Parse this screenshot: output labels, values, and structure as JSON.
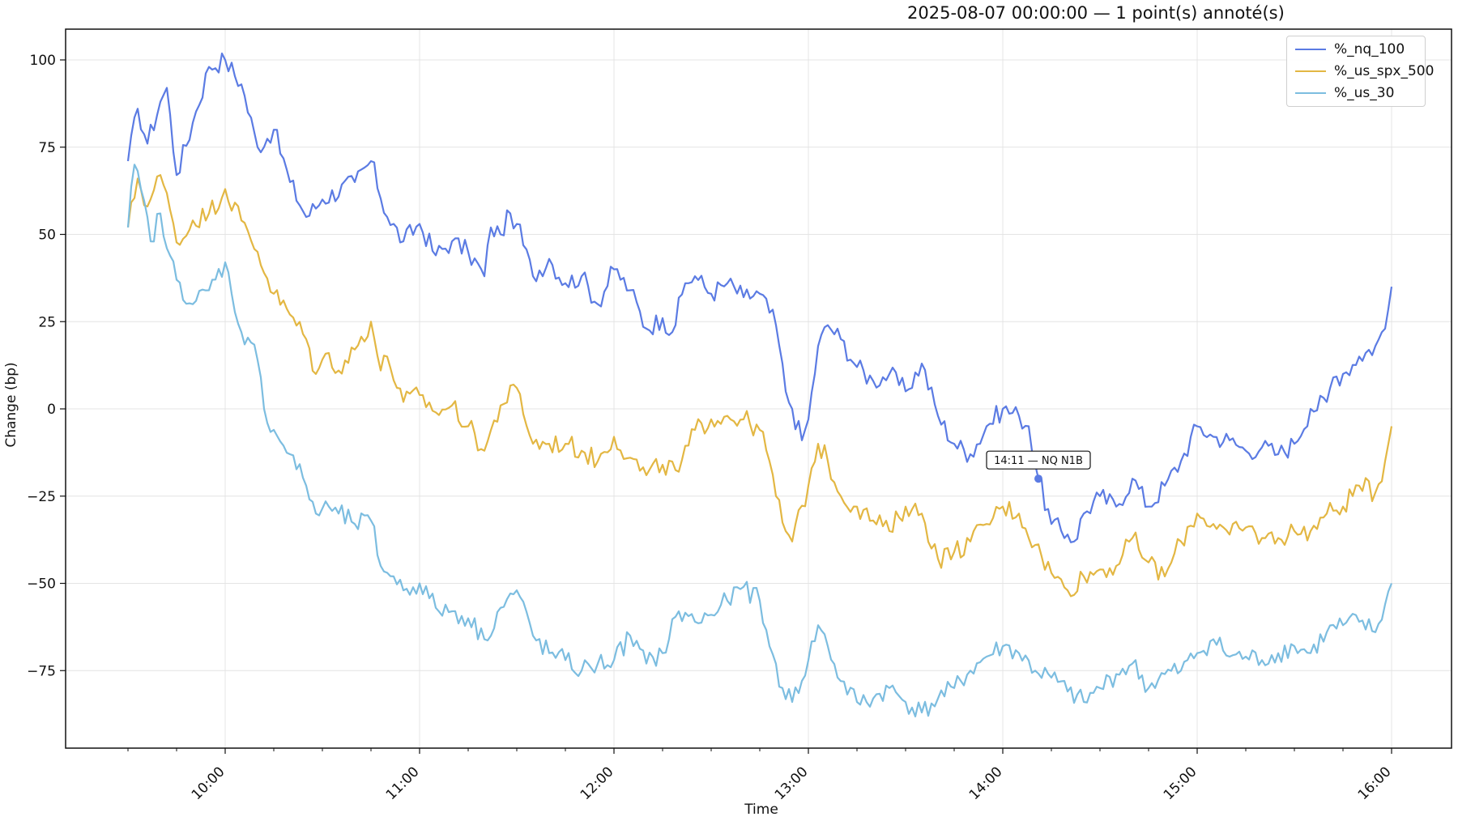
{
  "chart_data": {
    "type": "line",
    "title": "2025-08-07 00:00:00 — 1 point(s) annoté(s)",
    "xlabel": "Time",
    "ylabel": "Change (bp)",
    "x_range": [
      "09:30",
      "16:00"
    ],
    "ylim": [
      -97,
      109
    ],
    "y_ticks": [
      100,
      75,
      50,
      25,
      0,
      -25,
      -50,
      -75
    ],
    "y_tick_labels": [
      "100",
      "75",
      "50",
      "25",
      "0",
      "−25",
      "−50",
      "−75"
    ],
    "x_ticks": [
      "10:00",
      "11:00",
      "12:00",
      "13:00",
      "14:00",
      "15:00",
      "16:00"
    ],
    "grid": true,
    "legend_position": "top-right",
    "series": [
      {
        "name": "%_nq_100",
        "color": "#5b7be3",
        "points": [
          [
            "09:30",
            71
          ],
          [
            "09:33",
            86
          ],
          [
            "09:36",
            76
          ],
          [
            "09:40",
            88
          ],
          [
            "09:42",
            92
          ],
          [
            "09:45",
            67
          ],
          [
            "09:50",
            82
          ],
          [
            "09:55",
            98
          ],
          [
            "10:00",
            100
          ],
          [
            "10:05",
            93
          ],
          [
            "10:10",
            75
          ],
          [
            "10:15",
            80
          ],
          [
            "10:20",
            65
          ],
          [
            "10:25",
            55
          ],
          [
            "10:30",
            60
          ],
          [
            "10:40",
            65
          ],
          [
            "10:45",
            71
          ],
          [
            "10:50",
            55
          ],
          [
            "10:55",
            48
          ],
          [
            "11:00",
            53
          ],
          [
            "11:05",
            44
          ],
          [
            "11:10",
            48
          ],
          [
            "11:15",
            45
          ],
          [
            "11:20",
            38
          ],
          [
            "11:22",
            52
          ],
          [
            "11:25",
            50
          ],
          [
            "11:28",
            56
          ],
          [
            "11:30",
            53
          ],
          [
            "11:35",
            38
          ],
          [
            "11:40",
            43
          ],
          [
            "11:45",
            36
          ],
          [
            "11:50",
            38
          ],
          [
            "11:55",
            30
          ],
          [
            "12:00",
            40
          ],
          [
            "12:05",
            34
          ],
          [
            "12:10",
            23
          ],
          [
            "12:15",
            26
          ],
          [
            "12:18",
            22
          ],
          [
            "12:22",
            36
          ],
          [
            "12:25",
            38
          ],
          [
            "12:30",
            33
          ],
          [
            "12:35",
            36
          ],
          [
            "12:40",
            32
          ],
          [
            "12:45",
            33
          ],
          [
            "12:50",
            24
          ],
          [
            "12:53",
            5
          ],
          [
            "12:55",
            0
          ],
          [
            "12:58",
            -9
          ],
          [
            "13:00",
            -3
          ],
          [
            "13:03",
            18
          ],
          [
            "13:06",
            24
          ],
          [
            "13:10",
            20
          ],
          [
            "13:15",
            12
          ],
          [
            "13:20",
            8
          ],
          [
            "13:25",
            10
          ],
          [
            "13:30",
            5
          ],
          [
            "13:35",
            13
          ],
          [
            "13:40",
            -2
          ],
          [
            "13:45",
            -10
          ],
          [
            "13:50",
            -13
          ],
          [
            "13:55",
            -5
          ],
          [
            "14:00",
            0
          ],
          [
            "14:05",
            -2
          ],
          [
            "14:08",
            -5
          ],
          [
            "14:11",
            -20
          ],
          [
            "14:15",
            -33
          ],
          [
            "14:20",
            -36
          ],
          [
            "14:22",
            -38
          ],
          [
            "14:25",
            -30
          ],
          [
            "14:30",
            -25
          ],
          [
            "14:35",
            -28
          ],
          [
            "14:40",
            -20
          ],
          [
            "14:45",
            -28
          ],
          [
            "14:50",
            -22
          ],
          [
            "14:55",
            -15
          ],
          [
            "15:00",
            -5
          ],
          [
            "15:05",
            -8
          ],
          [
            "15:10",
            -9
          ],
          [
            "15:15",
            -12
          ],
          [
            "15:20",
            -11
          ],
          [
            "15:25",
            -13
          ],
          [
            "15:30",
            -10
          ],
          [
            "15:35",
            0
          ],
          [
            "15:40",
            2
          ],
          [
            "15:42",
            9
          ],
          [
            "15:45",
            10
          ],
          [
            "15:50",
            15
          ],
          [
            "15:55",
            18
          ],
          [
            "15:58",
            23
          ],
          [
            "16:00",
            35
          ]
        ]
      },
      {
        "name": "%_us_spx_500",
        "color": "#e3b743",
        "points": [
          [
            "09:30",
            52
          ],
          [
            "09:33",
            66
          ],
          [
            "09:36",
            58
          ],
          [
            "09:40",
            67
          ],
          [
            "09:43",
            57
          ],
          [
            "09:46",
            47
          ],
          [
            "09:50",
            54
          ],
          [
            "09:55",
            56
          ],
          [
            "10:00",
            63
          ],
          [
            "10:05",
            54
          ],
          [
            "10:10",
            45
          ],
          [
            "10:15",
            33
          ],
          [
            "10:20",
            27
          ],
          [
            "10:25",
            20
          ],
          [
            "10:28",
            10
          ],
          [
            "10:32",
            16
          ],
          [
            "10:35",
            11
          ],
          [
            "10:40",
            17
          ],
          [
            "10:45",
            25
          ],
          [
            "10:48",
            11
          ],
          [
            "10:50",
            15
          ],
          [
            "10:55",
            2
          ],
          [
            "11:00",
            4
          ],
          [
            "11:05",
            -1
          ],
          [
            "11:10",
            1
          ],
          [
            "11:15",
            -5
          ],
          [
            "11:20",
            -12
          ],
          [
            "11:25",
            1
          ],
          [
            "11:30",
            6
          ],
          [
            "11:35",
            -10
          ],
          [
            "11:40",
            -10
          ],
          [
            "11:45",
            -10
          ],
          [
            "11:50",
            -12
          ],
          [
            "11:55",
            -15
          ],
          [
            "12:00",
            -8
          ],
          [
            "12:05",
            -14
          ],
          [
            "12:10",
            -19
          ],
          [
            "12:15",
            -16
          ],
          [
            "12:20",
            -18
          ],
          [
            "12:25",
            -6
          ],
          [
            "12:30",
            -3
          ],
          [
            "12:35",
            -2
          ],
          [
            "12:40",
            -3
          ],
          [
            "12:45",
            -6
          ],
          [
            "12:48",
            -15
          ],
          [
            "12:50",
            -25
          ],
          [
            "12:53",
            -35
          ],
          [
            "12:55",
            -38
          ],
          [
            "13:00",
            -22
          ],
          [
            "13:03",
            -10
          ],
          [
            "13:06",
            -15
          ],
          [
            "13:10",
            -25
          ],
          [
            "13:15",
            -28
          ],
          [
            "13:20",
            -32
          ],
          [
            "13:25",
            -35
          ],
          [
            "13:30",
            -28
          ],
          [
            "13:35",
            -30
          ],
          [
            "13:40",
            -43
          ],
          [
            "13:45",
            -41
          ],
          [
            "13:50",
            -38
          ],
          [
            "13:55",
            -33
          ],
          [
            "14:00",
            -28
          ],
          [
            "14:05",
            -30
          ],
          [
            "14:10",
            -39
          ],
          [
            "14:15",
            -47
          ],
          [
            "14:20",
            -52
          ],
          [
            "14:25",
            -48
          ],
          [
            "14:30",
            -46
          ],
          [
            "14:35",
            -45
          ],
          [
            "14:40",
            -37
          ],
          [
            "14:45",
            -44
          ],
          [
            "14:50",
            -48
          ],
          [
            "14:55",
            -38
          ],
          [
            "15:00",
            -30
          ],
          [
            "15:05",
            -33
          ],
          [
            "15:10",
            -36
          ],
          [
            "15:15",
            -34
          ],
          [
            "15:20",
            -37
          ],
          [
            "15:25",
            -37
          ],
          [
            "15:30",
            -35
          ],
          [
            "15:35",
            -35
          ],
          [
            "15:40",
            -30
          ],
          [
            "15:45",
            -28
          ],
          [
            "15:50",
            -22
          ],
          [
            "15:55",
            -24
          ],
          [
            "15:58",
            -15
          ],
          [
            "16:00",
            -5
          ]
        ]
      },
      {
        "name": "%_us_30",
        "color": "#7cbde0",
        "points": [
          [
            "09:30",
            52
          ],
          [
            "09:32",
            70
          ],
          [
            "09:34",
            63
          ],
          [
            "09:37",
            48
          ],
          [
            "09:40",
            56
          ],
          [
            "09:42",
            46
          ],
          [
            "09:45",
            37
          ],
          [
            "09:50",
            30
          ],
          [
            "09:55",
            34
          ],
          [
            "10:00",
            42
          ],
          [
            "10:02",
            33
          ],
          [
            "10:05",
            22
          ],
          [
            "10:08",
            19
          ],
          [
            "10:10",
            14
          ],
          [
            "10:12",
            0
          ],
          [
            "10:15",
            -6
          ],
          [
            "10:20",
            -13
          ],
          [
            "10:25",
            -22
          ],
          [
            "10:28",
            -30
          ],
          [
            "10:32",
            -28
          ],
          [
            "10:35",
            -30
          ],
          [
            "10:40",
            -33
          ],
          [
            "10:45",
            -32
          ],
          [
            "10:48",
            -45
          ],
          [
            "10:52",
            -48
          ],
          [
            "10:55",
            -52
          ],
          [
            "11:00",
            -50
          ],
          [
            "11:05",
            -57
          ],
          [
            "11:10",
            -58
          ],
          [
            "11:15",
            -60
          ],
          [
            "11:20",
            -66
          ],
          [
            "11:25",
            -57
          ],
          [
            "11:30",
            -52
          ],
          [
            "11:35",
            -65
          ],
          [
            "11:40",
            -70
          ],
          [
            "11:45",
            -72
          ],
          [
            "11:50",
            -75
          ],
          [
            "11:55",
            -73
          ],
          [
            "12:00",
            -72
          ],
          [
            "12:05",
            -65
          ],
          [
            "12:10",
            -73
          ],
          [
            "12:15",
            -70
          ],
          [
            "12:20",
            -58
          ],
          [
            "12:25",
            -61
          ],
          [
            "12:30",
            -59
          ],
          [
            "12:35",
            -55
          ],
          [
            "12:40",
            -51
          ],
          [
            "12:45",
            -55
          ],
          [
            "12:48",
            -68
          ],
          [
            "12:52",
            -80
          ],
          [
            "12:55",
            -84
          ],
          [
            "13:00",
            -72
          ],
          [
            "13:03",
            -62
          ],
          [
            "13:06",
            -68
          ],
          [
            "13:10",
            -78
          ],
          [
            "13:15",
            -84
          ],
          [
            "13:20",
            -83
          ],
          [
            "13:25",
            -80
          ],
          [
            "13:30",
            -84
          ],
          [
            "13:35",
            -87
          ],
          [
            "13:40",
            -83
          ],
          [
            "13:45",
            -80
          ],
          [
            "13:50",
            -75
          ],
          [
            "13:55",
            -71
          ],
          [
            "14:00",
            -68
          ],
          [
            "14:05",
            -70
          ],
          [
            "14:10",
            -75
          ],
          [
            "14:15",
            -77
          ],
          [
            "14:20",
            -81
          ],
          [
            "14:25",
            -84
          ],
          [
            "14:30",
            -80
          ],
          [
            "14:35",
            -76
          ],
          [
            "14:40",
            -73
          ],
          [
            "14:45",
            -80
          ],
          [
            "14:50",
            -76
          ],
          [
            "14:55",
            -75
          ],
          [
            "15:00",
            -70
          ],
          [
            "15:05",
            -66
          ],
          [
            "15:10",
            -71
          ],
          [
            "15:15",
            -71
          ],
          [
            "15:20",
            -72
          ],
          [
            "15:25",
            -70
          ],
          [
            "15:30",
            -68
          ],
          [
            "15:35",
            -70
          ],
          [
            "15:40",
            -64
          ],
          [
            "15:45",
            -62
          ],
          [
            "15:50",
            -61
          ],
          [
            "15:55",
            -64
          ],
          [
            "15:58",
            -56
          ],
          [
            "16:00",
            -50
          ]
        ]
      }
    ],
    "annotations": [
      {
        "label": "14:11 — NQ N1B",
        "x": "14:11",
        "y": -20,
        "series": "%_nq_100"
      }
    ]
  }
}
